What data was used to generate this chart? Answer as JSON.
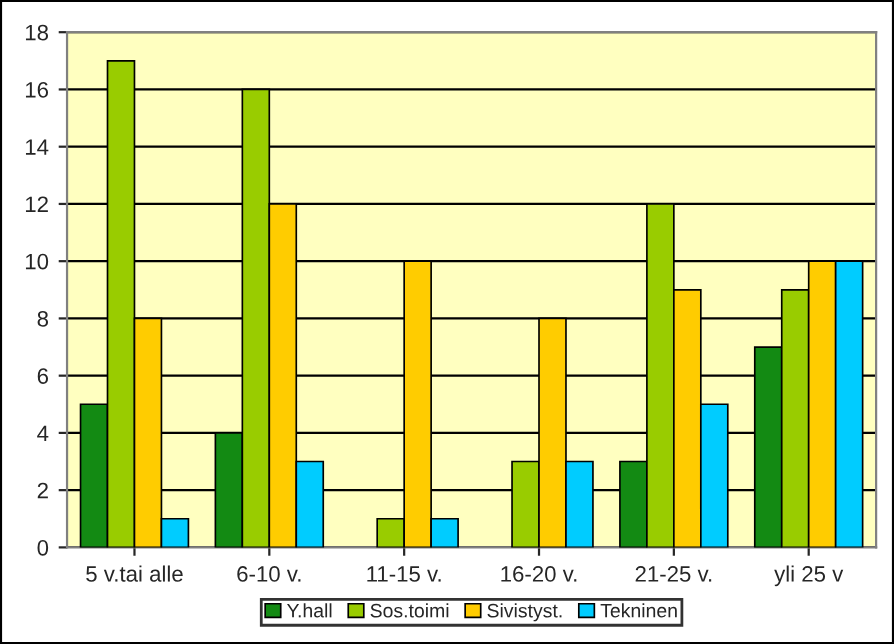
{
  "chart_data": {
    "type": "bar",
    "categories": [
      "5 v.tai alle",
      "6-10 v.",
      "11-15 v.",
      "16-20 v.",
      "21-25 v.",
      "yli 25 v"
    ],
    "series": [
      {
        "name": "Y.hall",
        "color": "#138a13",
        "values": [
          5,
          4,
          null,
          null,
          3,
          7
        ]
      },
      {
        "name": "Sos.toimi",
        "color": "#99cc00",
        "values": [
          17,
          16,
          1,
          3,
          12,
          9
        ]
      },
      {
        "name": "Sivistyst.",
        "color": "#ffcc00",
        "values": [
          8,
          12,
          10,
          8,
          9,
          10
        ]
      },
      {
        "name": "Tekninen",
        "color": "#00ccff",
        "values": [
          1,
          3,
          1,
          3,
          5,
          10
        ]
      }
    ],
    "ylim": [
      0,
      18
    ],
    "yticks": [
      0,
      2,
      4,
      6,
      8,
      10,
      12,
      14,
      16,
      18
    ],
    "grid": "y",
    "legend": "bottom"
  }
}
